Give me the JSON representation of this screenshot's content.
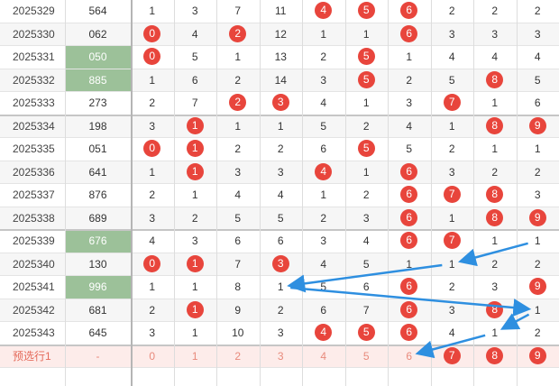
{
  "rows": [
    {
      "issue": "2025329",
      "num": "564",
      "num_green": false,
      "digits": [
        1,
        3,
        7,
        11,
        0,
        0,
        0,
        2,
        2,
        2
      ],
      "hits": [
        4,
        5,
        6
      ]
    },
    {
      "issue": "2025330",
      "num": "062",
      "num_green": false,
      "digits": [
        0,
        4,
        0,
        12,
        1,
        1,
        0,
        3,
        3,
        3
      ],
      "hits": [
        0,
        2,
        6
      ]
    },
    {
      "issue": "2025331",
      "num": "050",
      "num_green": true,
      "digits": [
        0,
        5,
        1,
        13,
        2,
        0,
        1,
        4,
        4,
        4
      ],
      "hits": [
        0,
        5
      ]
    },
    {
      "issue": "2025332",
      "num": "885",
      "num_green": true,
      "digits": [
        1,
        6,
        2,
        14,
        3,
        0,
        2,
        5,
        0,
        5
      ],
      "hits": [
        5,
        8
      ]
    },
    {
      "issue": "2025333",
      "num": "273",
      "num_green": false,
      "digits": [
        2,
        7,
        0,
        0,
        4,
        1,
        3,
        0,
        1,
        6
      ],
      "hits": [
        2,
        3,
        7
      ]
    },
    {
      "issue": "2025334",
      "num": "198",
      "num_green": false,
      "digits": [
        3,
        0,
        1,
        1,
        5,
        2,
        4,
        1,
        0,
        0
      ],
      "hits": [
        1,
        8,
        9
      ]
    },
    {
      "issue": "2025335",
      "num": "051",
      "num_green": false,
      "digits": [
        0,
        0,
        2,
        2,
        6,
        0,
        5,
        2,
        1,
        1
      ],
      "hits": [
        0,
        1,
        5
      ]
    },
    {
      "issue": "2025336",
      "num": "641",
      "num_green": false,
      "digits": [
        1,
        0,
        3,
        3,
        0,
        1,
        0,
        3,
        2,
        2
      ],
      "hits": [
        1,
        4,
        6
      ]
    },
    {
      "issue": "2025337",
      "num": "876",
      "num_green": false,
      "digits": [
        2,
        1,
        4,
        4,
        1,
        2,
        0,
        0,
        0,
        3
      ],
      "hits": [
        6,
        7,
        8
      ]
    },
    {
      "issue": "2025338",
      "num": "689",
      "num_green": false,
      "digits": [
        3,
        2,
        5,
        5,
        2,
        3,
        0,
        1,
        0,
        0
      ],
      "hits": [
        6,
        8,
        9
      ]
    },
    {
      "issue": "2025339",
      "num": "676",
      "num_green": true,
      "digits": [
        4,
        3,
        6,
        6,
        3,
        4,
        0,
        0,
        1,
        1
      ],
      "hits": [
        6,
        7
      ]
    },
    {
      "issue": "2025340",
      "num": "130",
      "num_green": false,
      "digits": [
        0,
        0,
        7,
        0,
        4,
        5,
        1,
        1,
        2,
        2
      ],
      "hits": [
        0,
        1,
        3
      ]
    },
    {
      "issue": "2025341",
      "num": "996",
      "num_green": true,
      "digits": [
        1,
        1,
        8,
        1,
        5,
        6,
        0,
        2,
        3,
        0
      ],
      "hits": [
        6,
        9
      ]
    },
    {
      "issue": "2025342",
      "num": "681",
      "num_green": false,
      "digits": [
        2,
        0,
        9,
        2,
        6,
        7,
        0,
        3,
        0,
        1
      ],
      "hits": [
        1,
        6,
        8
      ]
    },
    {
      "issue": "2025343",
      "num": "645",
      "num_green": false,
      "digits": [
        3,
        1,
        10,
        3,
        0,
        0,
        0,
        4,
        1,
        2
      ],
      "hits": [
        4,
        5,
        6
      ]
    }
  ],
  "predict": {
    "label": "预选行1",
    "num": "-",
    "digits": [
      "0",
      "1",
      "2",
      "3",
      "4",
      "5",
      "6",
      "7",
      "8",
      "9"
    ],
    "hits": [
      7,
      8,
      9
    ]
  },
  "colors": {
    "ball": "#e8453c",
    "green": "#9cc199",
    "arrow": "#2e8fe0",
    "predict_bg": "#fdecea"
  },
  "arrows": [
    {
      "from_row": 10,
      "from_digit": 9,
      "to_row": 11,
      "to_digit": 7
    },
    {
      "from_row": 11,
      "from_digit": 7,
      "to_row": 12,
      "to_digit": 3
    },
    {
      "from_row": 12,
      "from_digit": 3,
      "to_row": 13,
      "to_digit": 9
    },
    {
      "from_row": 13,
      "from_digit": 9,
      "to_row": 14,
      "to_digit": 8
    },
    {
      "from_row": 14,
      "from_digit": 8,
      "to_row": 15,
      "to_digit": 6
    }
  ]
}
